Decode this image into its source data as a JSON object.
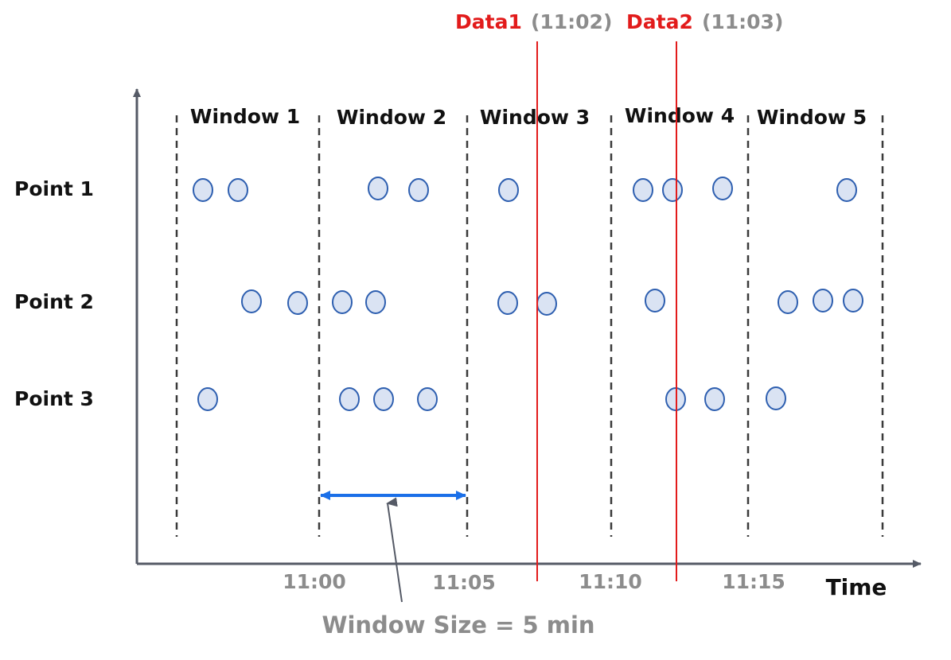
{
  "diagram": {
    "windows": [
      "Window 1",
      "Window 2",
      "Window 3",
      "Window 4",
      "Window 5"
    ],
    "rows": [
      "Point 1",
      "Point 2",
      "Point 3"
    ],
    "x_ticks": [
      "11:00",
      "11:05",
      "11:10",
      "11:15"
    ],
    "x_axis_label": "Time",
    "markers": [
      {
        "name": "Data1",
        "time": "(11:02)"
      },
      {
        "name": "Data2",
        "time": "(11:03)"
      }
    ],
    "window_size_label": "Window Size = 5 min",
    "colors": {
      "axis": "#555a66",
      "boundary": "#3a3a3a",
      "point_fill": "#dae3f3",
      "point_stroke": "#2e5fb0",
      "marker": "#e21b1b",
      "arrow": "#1a6fe8"
    }
  }
}
